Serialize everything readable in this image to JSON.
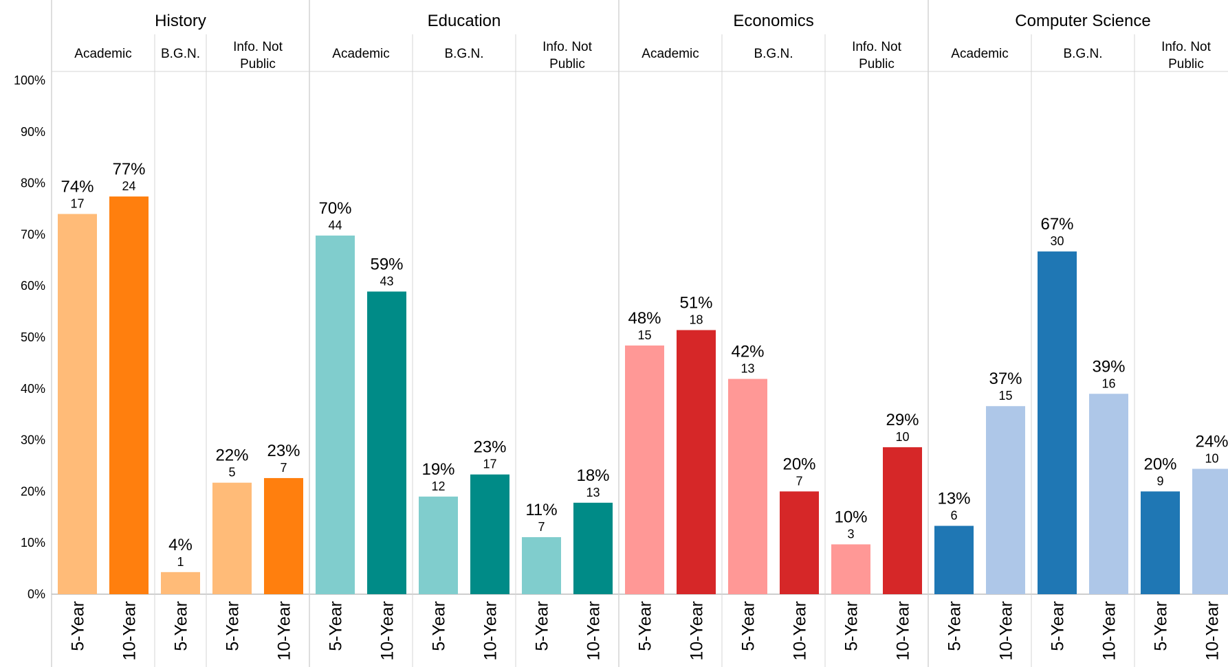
{
  "chart_data": {
    "type": "bar",
    "ylim": [
      0,
      100
    ],
    "y_ticks": [
      "0%",
      "10%",
      "20%",
      "30%",
      "40%",
      "50%",
      "60%",
      "70%",
      "80%",
      "90%",
      "100%"
    ],
    "grid": false,
    "groups": [
      {
        "name": "History",
        "subgroups": [
          {
            "name": "Academic",
            "bars": [
              {
                "x": "5-Year",
                "value": 74,
                "label": "74%",
                "count": "17",
                "color": "#ffbb78"
              },
              {
                "x": "10-Year",
                "value": 77.4,
                "label": "77%",
                "count": "24",
                "color": "#ff7f0e"
              }
            ]
          },
          {
            "name": "B.G.N.",
            "bars": [
              {
                "x": "5-Year",
                "value": 4.3,
                "label": "4%",
                "count": "1",
                "color": "#ffbb78"
              }
            ]
          },
          {
            "name": "Info. Not Public",
            "bars": [
              {
                "x": "5-Year",
                "value": 21.7,
                "label": "22%",
                "count": "5",
                "color": "#ffbb78"
              },
              {
                "x": "10-Year",
                "value": 22.6,
                "label": "23%",
                "count": "7",
                "color": "#ff7f0e"
              }
            ]
          }
        ]
      },
      {
        "name": "Education",
        "subgroups": [
          {
            "name": "Academic",
            "bars": [
              {
                "x": "5-Year",
                "value": 69.8,
                "label": "70%",
                "count": "44",
                "color": "#80cdcd"
              },
              {
                "x": "10-Year",
                "value": 58.9,
                "label": "59%",
                "count": "43",
                "color": "#008b87"
              }
            ]
          },
          {
            "name": "B.G.N.",
            "bars": [
              {
                "x": "5-Year",
                "value": 19.0,
                "label": "19%",
                "count": "12",
                "color": "#80cdcd"
              },
              {
                "x": "10-Year",
                "value": 23.3,
                "label": "23%",
                "count": "17",
                "color": "#008b87"
              }
            ]
          },
          {
            "name": "Info. Not Public",
            "bars": [
              {
                "x": "5-Year",
                "value": 11.1,
                "label": "11%",
                "count": "7",
                "color": "#80cdcd"
              },
              {
                "x": "10-Year",
                "value": 17.8,
                "label": "18%",
                "count": "13",
                "color": "#008b87"
              }
            ]
          }
        ]
      },
      {
        "name": "Economics",
        "subgroups": [
          {
            "name": "Academic",
            "bars": [
              {
                "x": "5-Year",
                "value": 48.4,
                "label": "48%",
                "count": "15",
                "color": "#ff9896"
              },
              {
                "x": "10-Year",
                "value": 51.4,
                "label": "51%",
                "count": "18",
                "color": "#d62728"
              }
            ]
          },
          {
            "name": "B.G.N.",
            "bars": [
              {
                "x": "5-Year",
                "value": 41.9,
                "label": "42%",
                "count": "13",
                "color": "#ff9896"
              },
              {
                "x": "10-Year",
                "value": 20.0,
                "label": "20%",
                "count": "7",
                "color": "#d62728"
              }
            ]
          },
          {
            "name": "Info. Not Public",
            "bars": [
              {
                "x": "5-Year",
                "value": 9.7,
                "label": "10%",
                "count": "3",
                "color": "#ff9896"
              },
              {
                "x": "10-Year",
                "value": 28.6,
                "label": "29%",
                "count": "10",
                "color": "#d62728"
              }
            ]
          }
        ]
      },
      {
        "name": "Computer Science",
        "subgroups": [
          {
            "name": "Academic",
            "bars": [
              {
                "x": "5-Year",
                "value": 13.3,
                "label": "13%",
                "count": "6",
                "color": "#1f77b4"
              },
              {
                "x": "10-Year",
                "value": 36.6,
                "label": "37%",
                "count": "15",
                "color": "#aec7e8"
              }
            ]
          },
          {
            "name": "B.G.N.",
            "bars": [
              {
                "x": "5-Year",
                "value": 66.7,
                "label": "67%",
                "count": "30",
                "color": "#1f77b4"
              },
              {
                "x": "10-Year",
                "value": 39.0,
                "label": "39%",
                "count": "16",
                "color": "#aec7e8"
              }
            ]
          },
          {
            "name": "Info. Not Public",
            "bars": [
              {
                "x": "5-Year",
                "value": 20.0,
                "label": "20%",
                "count": "9",
                "color": "#1f77b4"
              },
              {
                "x": "10-Year",
                "value": 24.4,
                "label": "24%",
                "count": "10",
                "color": "#aec7e8"
              }
            ]
          }
        ]
      }
    ]
  }
}
